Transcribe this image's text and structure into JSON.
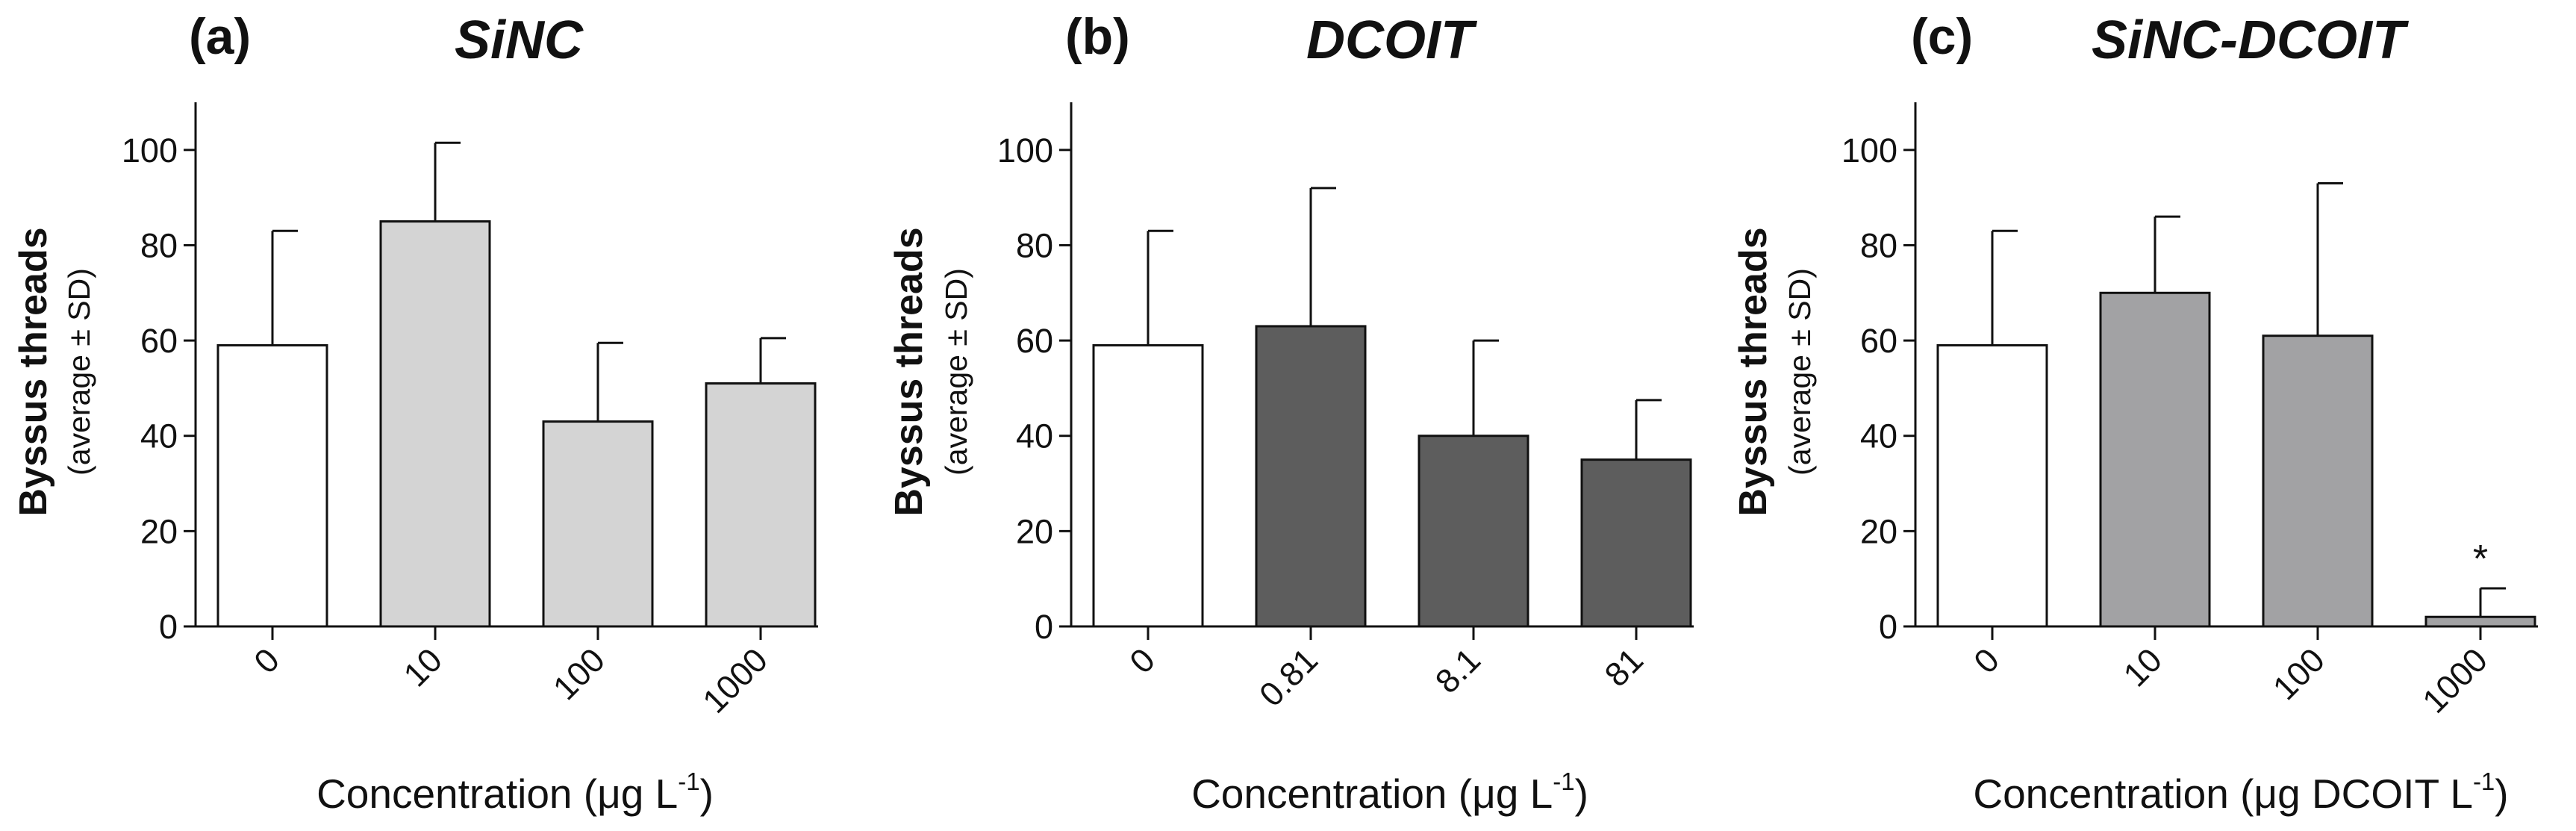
{
  "chart_data": [
    {
      "type": "bar",
      "panel_label": "(a)",
      "title": "SiNC",
      "ylabel_main": "Byssus threads",
      "ylabel_sub": "(average ± SD)",
      "xlabel_pre": "Concentration (μg L",
      "xlabel_sup": "-1",
      "xlabel_post": ")",
      "categories": [
        "0",
        "10",
        "100",
        "1000"
      ],
      "values": [
        59,
        85,
        43,
        51
      ],
      "errors": [
        24,
        16.5,
        16.5,
        9.5
      ],
      "colors": [
        "#ffffff",
        "#d4d4d4",
        "#d4d4d4",
        "#d4d4d4"
      ],
      "annotations": [
        "",
        "",
        "",
        ""
      ],
      "yticks": [
        0,
        20,
        40,
        60,
        80,
        100
      ],
      "ylim": [
        0,
        110
      ]
    },
    {
      "type": "bar",
      "panel_label": "(b)",
      "title": "DCOIT",
      "ylabel_main": "Byssus threads",
      "ylabel_sub": "(average ± SD)",
      "xlabel_pre": "Concentration (μg L",
      "xlabel_sup": "-1",
      "xlabel_post": ")",
      "categories": [
        "0",
        "0.81",
        "8.1",
        "81"
      ],
      "values": [
        59,
        63,
        40,
        35
      ],
      "errors": [
        24,
        29,
        20,
        12.5
      ],
      "colors": [
        "#ffffff",
        "#5d5d5d",
        "#5d5d5d",
        "#5d5d5d"
      ],
      "annotations": [
        "",
        "",
        "",
        ""
      ],
      "yticks": [
        0,
        20,
        40,
        60,
        80,
        100
      ],
      "ylim": [
        0,
        110
      ]
    },
    {
      "type": "bar",
      "panel_label": "(c)",
      "title": "SiNC-DCOIT",
      "ylabel_main": "Byssus threads",
      "ylabel_sub": "(average ± SD)",
      "xlabel_pre": "Concentration (μg DCOIT L",
      "xlabel_sup": "-1",
      "xlabel_post": ")",
      "categories": [
        "0",
        "10",
        "100",
        "1000"
      ],
      "values": [
        59,
        70,
        61,
        2
      ],
      "errors": [
        24,
        16,
        32,
        6
      ],
      "colors": [
        "#ffffff",
        "#a2a2a4",
        "#a2a2a4",
        "#a2a2a4"
      ],
      "annotations": [
        "",
        "",
        "",
        "*"
      ],
      "yticks": [
        0,
        20,
        40,
        60,
        80,
        100
      ],
      "ylim": [
        0,
        110
      ]
    }
  ]
}
